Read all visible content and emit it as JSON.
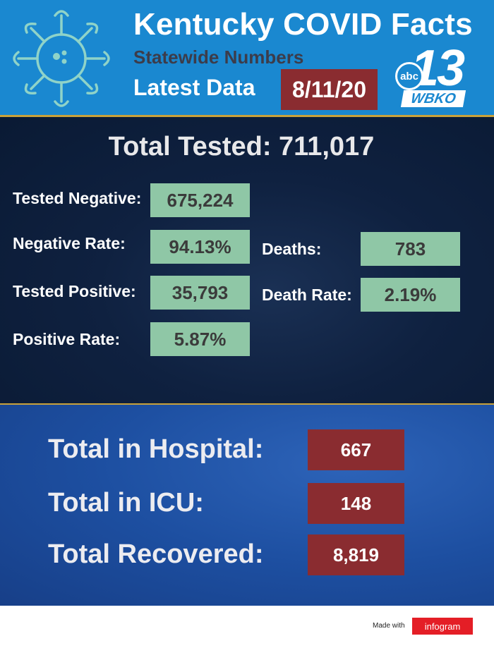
{
  "header": {
    "title": "Kentucky COVID Facts",
    "subtitle": "Statewide Numbers",
    "latest_label": "Latest Data",
    "date": "8/11/20",
    "logo": {
      "channel": "13",
      "network": "abc",
      "call_sign": "WBKO"
    }
  },
  "tested": {
    "total_label": "Total Tested: 711,017",
    "stats": [
      {
        "label": "Tested Negative:",
        "value": "675,224"
      },
      {
        "label": "Negative Rate:",
        "value": "94.13%"
      },
      {
        "label": "Tested Positive:",
        "value": "35,793"
      },
      {
        "label": "Positive Rate:",
        "value": "5.87%"
      },
      {
        "label": "Deaths:",
        "value": "783"
      },
      {
        "label": "Death Rate:",
        "value": "2.19%"
      }
    ]
  },
  "totals": [
    {
      "label": "Total in Hospital:",
      "value": "667"
    },
    {
      "label": "Total in ICU:",
      "value": "148"
    },
    {
      "label": "Total Recovered:",
      "value": "8,819"
    }
  ],
  "footer": {
    "made_with": "Made with",
    "brand": "infogram"
  },
  "colors": {
    "header_bg": "#1a88d0",
    "accent_red": "#8a2c30",
    "stat_green": "#8fc7a6",
    "gold_divider": "#c9a23a",
    "dark_navy": "#0f2140",
    "lower_blue": "#1d4fa1",
    "infogram_red": "#e41e26"
  },
  "icons": [
    "virus-icon",
    "wbko-13-logo"
  ]
}
